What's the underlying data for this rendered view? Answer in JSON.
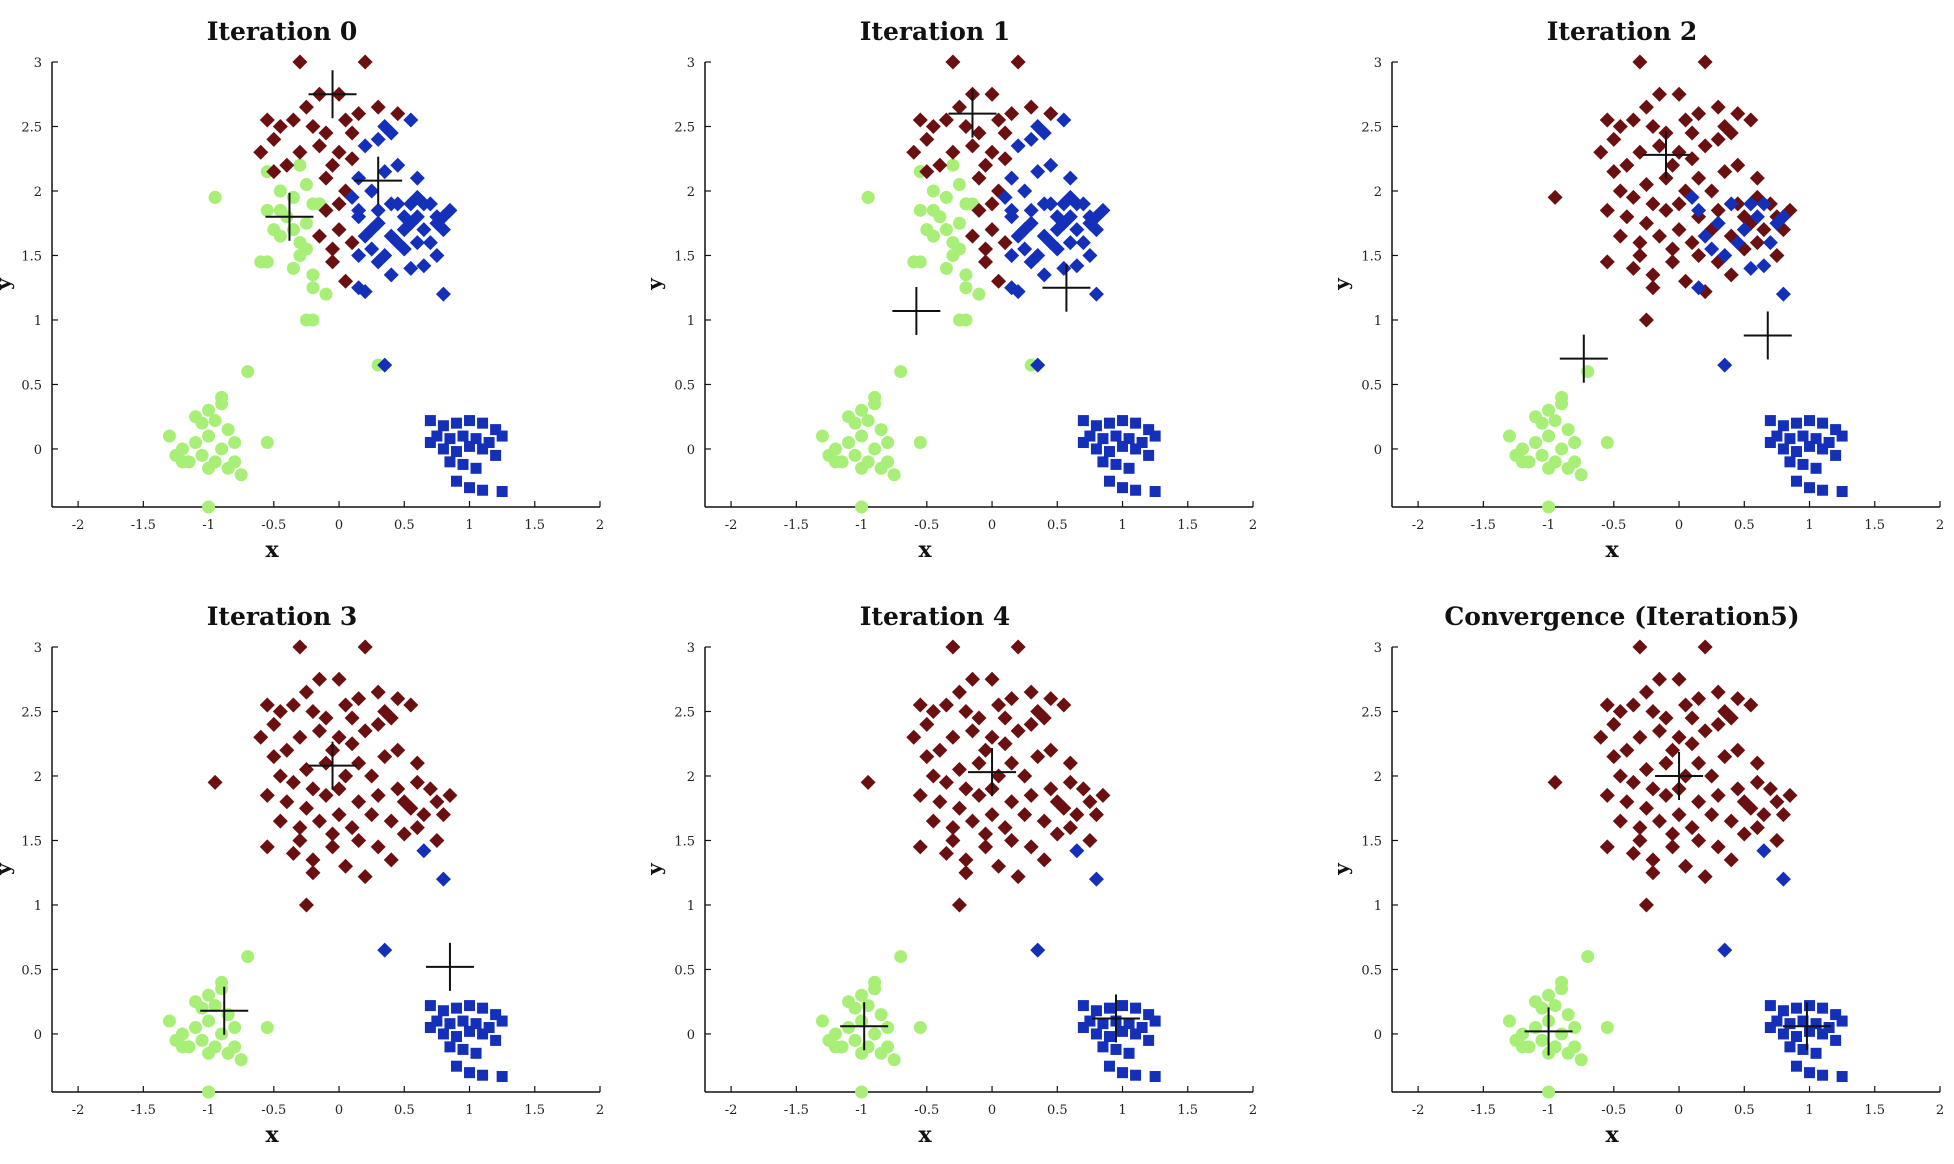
{
  "figure": {
    "background": "#ffffff",
    "axis_color": "#111111",
    "centroid_color": "#111111"
  },
  "colors": {
    "maroon": "#6b1010",
    "blue": "#1530b8",
    "lightgreen": "#a8ef78"
  },
  "cluster_data": {
    "maroon": [
      [
        -0.55,
        2.55
      ],
      [
        -0.45,
        2.5
      ],
      [
        -0.35,
        2.55
      ],
      [
        -0.2,
        2.5
      ],
      [
        -0.1,
        2.45
      ],
      [
        0.05,
        2.55
      ],
      [
        0.15,
        2.6
      ],
      [
        0.3,
        2.65
      ],
      [
        0.45,
        2.6
      ],
      [
        -0.25,
        2.65
      ],
      [
        -0.15,
        2.75
      ],
      [
        0.0,
        2.75
      ],
      [
        -0.3,
        3.0
      ],
      [
        0.2,
        3.0
      ],
      [
        -0.6,
        2.3
      ],
      [
        -0.5,
        2.15
      ],
      [
        -0.4,
        2.2
      ],
      [
        -0.3,
        2.3
      ],
      [
        -0.15,
        2.35
      ],
      [
        0.0,
        2.3
      ],
      [
        0.1,
        2.45
      ],
      [
        0.2,
        2.35
      ],
      [
        0.3,
        2.4
      ],
      [
        0.4,
        2.45
      ],
      [
        0.55,
        2.55
      ],
      [
        -0.45,
        2.0
      ],
      [
        -0.35,
        1.95
      ],
      [
        -0.25,
        2.05
      ],
      [
        -0.1,
        2.1
      ],
      [
        0.05,
        2.0
      ],
      [
        0.15,
        2.1
      ],
      [
        0.25,
        2.0
      ],
      [
        0.35,
        2.15
      ],
      [
        0.45,
        2.2
      ],
      [
        0.6,
        1.95
      ],
      [
        0.7,
        1.9
      ],
      [
        -0.55,
        1.85
      ],
      [
        -0.4,
        1.8
      ],
      [
        -0.25,
        1.75
      ],
      [
        -0.1,
        1.85
      ],
      [
        0.0,
        1.9
      ],
      [
        0.15,
        1.8
      ],
      [
        0.3,
        1.85
      ],
      [
        0.45,
        1.9
      ],
      [
        0.55,
        1.75
      ],
      [
        0.75,
        1.8
      ],
      [
        0.85,
        1.85
      ],
      [
        -0.45,
        1.65
      ],
      [
        -0.3,
        1.6
      ],
      [
        -0.15,
        1.65
      ],
      [
        0.0,
        1.7
      ],
      [
        0.1,
        1.6
      ],
      [
        0.25,
        1.7
      ],
      [
        0.4,
        1.65
      ],
      [
        0.5,
        1.55
      ],
      [
        0.65,
        1.7
      ],
      [
        0.8,
        1.7
      ],
      [
        -0.55,
        1.45
      ],
      [
        -0.3,
        1.5
      ],
      [
        -0.2,
        1.35
      ],
      [
        -0.05,
        1.45
      ],
      [
        0.15,
        1.5
      ],
      [
        0.3,
        1.45
      ],
      [
        0.4,
        1.35
      ],
      [
        0.6,
        1.6
      ],
      [
        0.75,
        1.5
      ],
      [
        -0.2,
        1.25
      ],
      [
        0.05,
        1.3
      ],
      [
        0.2,
        1.22
      ],
      [
        -0.25,
        1.0
      ],
      [
        -0.95,
        1.95
      ],
      [
        -0.05,
        2.2
      ],
      [
        0.1,
        2.25
      ],
      [
        -0.5,
        2.4
      ],
      [
        0.35,
        2.5
      ],
      [
        -0.35,
        1.4
      ],
      [
        0.5,
        1.8
      ],
      [
        -0.05,
        1.55
      ],
      [
        0.6,
        2.1
      ],
      [
        -0.2,
        1.9
      ]
    ],
    "blue": [
      [
        0.8,
        1.2
      ],
      [
        0.35,
        0.65
      ],
      [
        0.65,
        1.42
      ],
      [
        0.7,
        1.6
      ],
      [
        0.75,
        1.75
      ],
      [
        0.6,
        1.8
      ],
      [
        0.5,
        1.7
      ],
      [
        0.45,
        1.6
      ],
      [
        0.3,
        1.75
      ],
      [
        0.4,
        1.9
      ],
      [
        0.2,
        1.65
      ],
      [
        0.15,
        1.85
      ],
      [
        0.55,
        1.9
      ],
      [
        0.35,
        1.5
      ],
      [
        0.25,
        1.55
      ],
      [
        0.65,
        1.9
      ],
      [
        0.1,
        1.95
      ],
      [
        0.8,
        1.8
      ],
      [
        0.15,
        1.25
      ],
      [
        0.55,
        1.4
      ]
    ],
    "blue_squares": [
      [
        0.7,
        0.22
      ],
      [
        0.8,
        0.18
      ],
      [
        0.9,
        0.2
      ],
      [
        1.0,
        0.22
      ],
      [
        1.1,
        0.2
      ],
      [
        1.2,
        0.15
      ],
      [
        1.25,
        0.1
      ],
      [
        0.75,
        0.1
      ],
      [
        0.85,
        0.08
      ],
      [
        0.95,
        0.1
      ],
      [
        1.05,
        0.08
      ],
      [
        1.15,
        0.05
      ],
      [
        0.8,
        0.0
      ],
      [
        0.9,
        -0.02
      ],
      [
        1.0,
        0.02
      ],
      [
        1.1,
        0.0
      ],
      [
        0.85,
        -0.1
      ],
      [
        0.95,
        -0.12
      ],
      [
        1.05,
        -0.15
      ],
      [
        0.9,
        -0.25
      ],
      [
        1.0,
        -0.3
      ],
      [
        1.1,
        -0.32
      ],
      [
        1.25,
        -0.33
      ],
      [
        0.7,
        0.05
      ],
      [
        1.2,
        -0.05
      ]
    ],
    "lightgreen": [
      [
        -1.3,
        0.1
      ],
      [
        -1.2,
        0.0
      ],
      [
        -1.1,
        0.05
      ],
      [
        -1.0,
        0.1
      ],
      [
        -0.9,
        0.0
      ],
      [
        -0.8,
        0.05
      ],
      [
        -1.15,
        -0.1
      ],
      [
        -1.05,
        -0.05
      ],
      [
        -0.95,
        -0.1
      ],
      [
        -0.85,
        -0.15
      ],
      [
        -1.0,
        -0.45
      ],
      [
        -1.1,
        0.25
      ],
      [
        -1.0,
        0.3
      ],
      [
        -0.9,
        0.35
      ],
      [
        -0.85,
        0.15
      ],
      [
        -1.2,
        -0.1
      ],
      [
        -0.75,
        -0.2
      ],
      [
        -0.55,
        0.05
      ],
      [
        -0.7,
        0.6
      ],
      [
        -0.9,
        0.4
      ],
      [
        -1.05,
        0.2
      ],
      [
        -0.95,
        0.22
      ],
      [
        -1.25,
        -0.05
      ],
      [
        -0.8,
        -0.1
      ],
      [
        -1.0,
        -0.15
      ]
    ],
    "lightgreen_upper": [
      [
        -0.95,
        1.95
      ],
      [
        -0.6,
        1.45
      ],
      [
        -0.55,
        2.15
      ],
      [
        -0.5,
        1.7
      ],
      [
        -0.45,
        1.85
      ],
      [
        -0.2,
        1.0
      ],
      [
        0.3,
        0.65
      ],
      [
        -0.1,
        1.2
      ],
      [
        -0.3,
        2.2
      ],
      [
        -0.15,
        1.9
      ],
      [
        -0.35,
        1.7
      ],
      [
        -0.25,
        1.55
      ]
    ]
  },
  "chart_data": [
    {
      "type": "scatter",
      "title": "Iteration 0",
      "xlabel": "x",
      "ylabel": "y",
      "xlim": [
        -2.2,
        2
      ],
      "ylim": [
        -0.45,
        3
      ],
      "xticks": [
        -2,
        -1.5,
        -1,
        -0.5,
        0,
        0.5,
        1,
        1.5,
        2
      ],
      "yticks": [
        0,
        0.5,
        1,
        1.5,
        2,
        2.5,
        3
      ],
      "centroids": [
        [
          -0.05,
          2.75
        ],
        [
          0.3,
          2.08
        ],
        [
          -0.38,
          1.8
        ]
      ],
      "membership": {
        "maroon": "maroon_top",
        "blue": "blue_mixed",
        "green": "green_mixed"
      }
    },
    {
      "type": "scatter",
      "title": "Iteration 1",
      "xlabel": "x",
      "ylabel": "y",
      "xlim": [
        -2.2,
        2
      ],
      "ylim": [
        -0.45,
        3
      ],
      "xticks": [
        -2,
        -1.5,
        -1,
        -0.5,
        0,
        0.5,
        1,
        1.5,
        2
      ],
      "yticks": [
        0,
        0.5,
        1,
        1.5,
        2,
        2.5,
        3
      ],
      "centroids": [
        [
          -0.15,
          2.6
        ],
        [
          0.57,
          1.25
        ],
        [
          -0.58,
          1.07
        ]
      ],
      "membership": {
        "maroon": "maroon_top",
        "blue": "blue_mixed",
        "green": "green_mixed"
      }
    },
    {
      "type": "scatter",
      "title": "Iteration 2",
      "xlabel": "x",
      "ylabel": "y",
      "xlim": [
        -2.2,
        2
      ],
      "ylim": [
        -0.45,
        3
      ],
      "xticks": [
        -2,
        -1.5,
        -1,
        -0.5,
        0,
        0.5,
        1,
        1.5,
        2
      ],
      "yticks": [
        0,
        0.5,
        1,
        1.5,
        2,
        2.5,
        3
      ],
      "centroids": [
        [
          -0.1,
          2.28
        ],
        [
          0.68,
          0.88
        ],
        [
          -0.73,
          0.7
        ]
      ],
      "membership": {
        "maroon": "maroon_all",
        "blue": "blue_partial",
        "green": "green_low"
      }
    },
    {
      "type": "scatter",
      "title": "Iteration 3",
      "xlabel": "x",
      "ylabel": "y",
      "xlim": [
        -2.2,
        2
      ],
      "ylim": [
        -0.45,
        3
      ],
      "xticks": [
        -2,
        -1.5,
        -1,
        -0.5,
        0,
        0.5,
        1,
        1.5,
        2
      ],
      "yticks": [
        0,
        0.5,
        1,
        1.5,
        2,
        2.5,
        3
      ],
      "centroids": [
        [
          -0.05,
          2.08
        ],
        [
          0.85,
          0.52
        ],
        [
          -0.88,
          0.18
        ]
      ],
      "membership": {
        "maroon": "maroon_all",
        "blue": "blue_final",
        "green": "green_low"
      }
    },
    {
      "type": "scatter",
      "title": "Iteration 4",
      "xlabel": "x",
      "ylabel": "y",
      "xlim": [
        -2.2,
        2
      ],
      "ylim": [
        -0.45,
        3
      ],
      "xticks": [
        -2,
        -1.5,
        -1,
        -0.5,
        0,
        0.5,
        1,
        1.5,
        2
      ],
      "yticks": [
        0,
        0.5,
        1,
        1.5,
        2,
        2.5,
        3
      ],
      "centroids": [
        [
          0.0,
          2.03
        ],
        [
          0.95,
          0.12
        ],
        [
          -0.98,
          0.06
        ]
      ],
      "membership": {
        "maroon": "maroon_all",
        "blue": "blue_final",
        "green": "green_low"
      }
    },
    {
      "type": "scatter",
      "title": "Convergence (Iteration5)",
      "xlabel": "x",
      "ylabel": "y",
      "xlim": [
        -2.2,
        2
      ],
      "ylim": [
        -0.45,
        3
      ],
      "xticks": [
        -2,
        -1.5,
        -1,
        -0.5,
        0,
        0.5,
        1,
        1.5,
        2
      ],
      "yticks": [
        0,
        0.5,
        1,
        1.5,
        2,
        2.5,
        3
      ],
      "centroids": [
        [
          0.0,
          2.0
        ],
        [
          0.98,
          0.06
        ],
        [
          -1.0,
          0.02
        ]
      ],
      "membership": {
        "maroon": "maroon_all",
        "blue": "blue_final",
        "green": "green_low"
      }
    }
  ]
}
